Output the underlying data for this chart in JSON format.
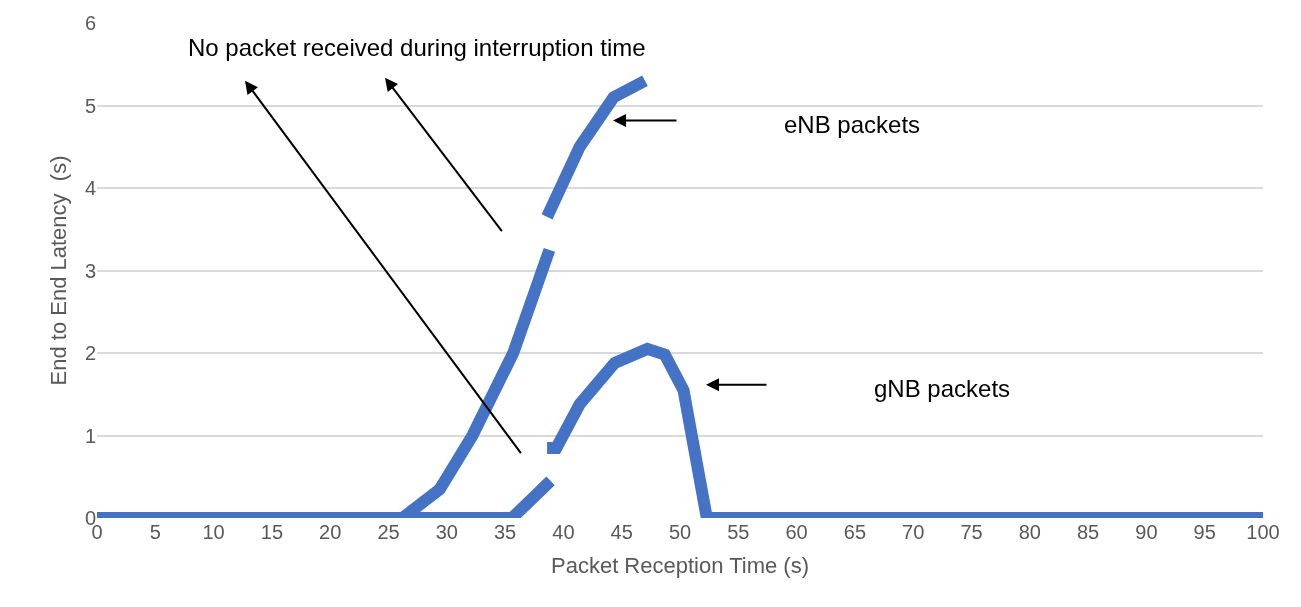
{
  "chart_data": {
    "type": "line",
    "xlabel": "Packet Reception Time (s)",
    "ylabel": "End to End Latency  (s)",
    "series": [
      {
        "color": "#4472c4",
        "x": [
          0,
          26.2,
          29.4,
          32.2,
          35.7,
          38.8
        ],
        "values": [
          0,
          0,
          0.35,
          1.0,
          2.0,
          3.25
        ]
      },
      {
        "color": "#4472c4",
        "x": [
          38.6,
          41.4,
          44.3,
          47
        ],
        "values": [
          3.65,
          4.5,
          5.1,
          5.3
        ]
      },
      {
        "color": "#4472c4",
        "x": [
          0,
          35.6,
          38.9
        ],
        "values": [
          0,
          0,
          0.45
        ]
      },
      {
        "color": "#4472c4",
        "x": [
          38.6,
          39.4,
          41.4,
          44.4,
          47.2,
          48.7,
          50.3,
          52.3,
          100
        ],
        "values": [
          0.85,
          0.85,
          1.38,
          1.88,
          2.05,
          1.98,
          1.55,
          0,
          0
        ]
      }
    ],
    "xlim": [
      0,
      100
    ],
    "xticks": [
      0,
      5,
      10,
      15,
      20,
      25,
      30,
      35,
      40,
      45,
      50,
      55,
      60,
      65,
      70,
      75,
      80,
      85,
      90,
      95,
      100
    ],
    "ylim": [
      0,
      6
    ],
    "yticks": [
      0,
      1,
      2,
      3,
      4,
      5,
      6
    ],
    "grid": "y",
    "marker": "none",
    "line_style": "solid",
    "annotations": [
      "No packet received during interruption time",
      "eNB packets",
      "gNB packets"
    ]
  }
}
